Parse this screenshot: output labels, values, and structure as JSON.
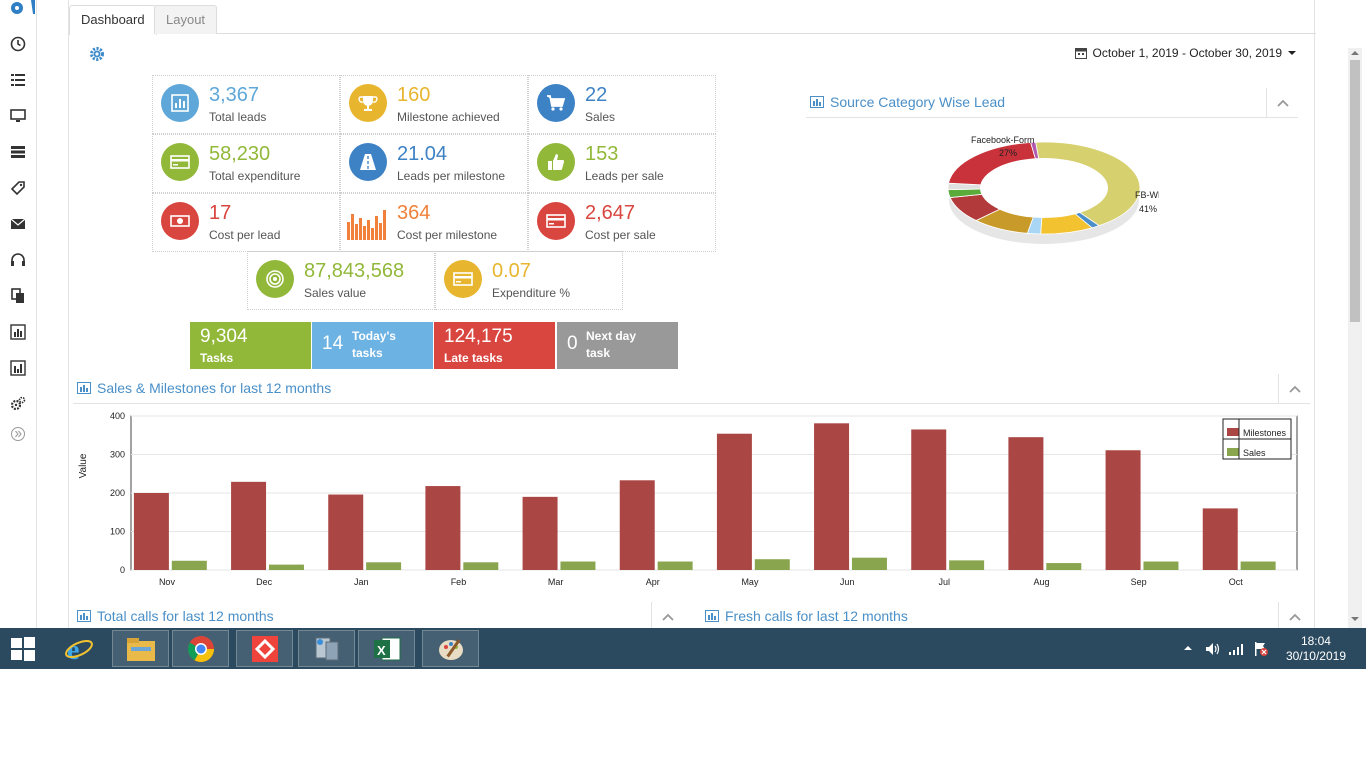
{
  "tabs": [
    {
      "label": "Dashboard"
    },
    {
      "label": "Layout"
    }
  ],
  "date_range": "October 1, 2019 - October 30, 2019",
  "stats": [
    {
      "value": "3,367",
      "label": "Total leads",
      "color": "#5ea7d8",
      "icon": "bar-chart-icon"
    },
    {
      "value": "160",
      "label": "Milestone achieved",
      "color": "#e8b52e",
      "icon": "trophy-icon"
    },
    {
      "value": "22",
      "label": "Sales",
      "color": "#3d82c4",
      "icon": "cart-icon"
    },
    {
      "value": "58,230",
      "label": "Total expenditure",
      "color": "#92b83a",
      "icon": "card-icon"
    },
    {
      "value": "21.04",
      "label": "Leads per milestone",
      "color": "#3d82c4",
      "icon": "road-icon"
    },
    {
      "value": "153",
      "label": "Leads per sale",
      "color": "#92b83a",
      "icon": "thumbs-up-icon"
    },
    {
      "value": "17",
      "label": "Cost per lead",
      "color": "#d9453f",
      "icon": "money-icon"
    },
    {
      "value": "364",
      "label": "Cost per milestone",
      "color": "#f0803a",
      "icon": "sparkline-icon"
    },
    {
      "value": "2,647",
      "label": "Cost per sale",
      "color": "#d9453f",
      "icon": "card-icon"
    },
    {
      "value": "87,843,568",
      "label": "Sales value",
      "color": "#92b83a",
      "icon": "target-icon"
    },
    {
      "value": "0.07",
      "label": "Expenditure %",
      "color": "#e8b52e",
      "icon": "card-icon"
    }
  ],
  "tasks": [
    {
      "value": "9,304",
      "label": "Tasks",
      "color": "#92b83a"
    },
    {
      "value": "14",
      "label": "Today's tasks",
      "color": "#6cb2e3"
    },
    {
      "value": "124,175",
      "label": "Late tasks",
      "color": "#d9453f"
    },
    {
      "value": "0",
      "label": "Next day task",
      "color": "#999999"
    }
  ],
  "donut": {
    "title": "Source Category Wise Lead",
    "labels": [
      {
        "name": "Facebook-Form",
        "pct": "27%"
      },
      {
        "name": "FB-WE",
        "pct": "41%"
      }
    ]
  },
  "chart_data": {
    "type": "bar",
    "title": "Sales & Milestones for last 12 months",
    "ylabel": "Value",
    "ylim": [
      0,
      400
    ],
    "yticks": [
      0,
      100,
      200,
      300,
      400
    ],
    "categories": [
      "Nov",
      "Dec",
      "Jan",
      "Feb",
      "Mar",
      "Apr",
      "May",
      "Jun",
      "Jul",
      "Aug",
      "Sep",
      "Oct"
    ],
    "series": [
      {
        "name": "Milestones",
        "color": "#aa4643",
        "values": [
          200,
          229,
          196,
          218,
          190,
          233,
          354,
          381,
          365,
          345,
          311,
          160
        ]
      },
      {
        "name": "Sales",
        "color": "#89a54e",
        "values": [
          24,
          14,
          20,
          20,
          22,
          22,
          28,
          32,
          25,
          18,
          22,
          22
        ]
      }
    ],
    "legend": "top-right"
  },
  "bottom_panels": [
    {
      "title": "Total calls for last 12 months"
    },
    {
      "title": "Fresh calls for last 12 months"
    }
  ],
  "taskbar": {
    "time": "18:04",
    "date": "30/10/2019"
  }
}
